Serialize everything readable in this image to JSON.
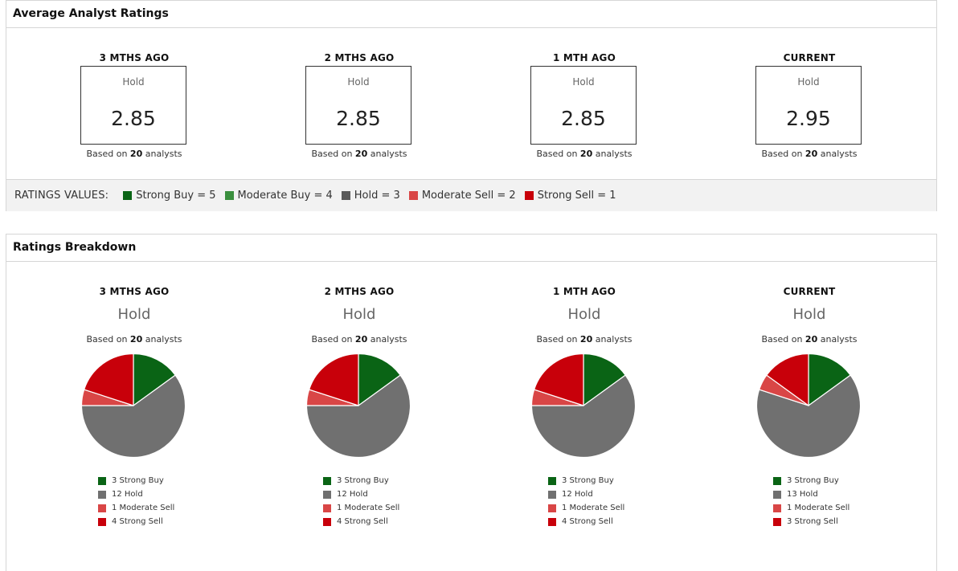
{
  "colors": {
    "strong_buy": "#0a6415",
    "moderate_buy": "#3a8f3e",
    "hold": "#707070",
    "moderate_sell": "#d94646",
    "strong_sell": "#c8000a"
  },
  "avg_panel": {
    "title": "Average Analyst Ratings",
    "columns": [
      {
        "period": "3 MTHS AGO",
        "label": "Hold",
        "score": "2.85",
        "based_prefix": "Based on",
        "analysts": "20",
        "based_suffix": "analysts"
      },
      {
        "period": "2 MTHS AGO",
        "label": "Hold",
        "score": "2.85",
        "based_prefix": "Based on",
        "analysts": "20",
        "based_suffix": "analysts"
      },
      {
        "period": "1 MTH AGO",
        "label": "Hold",
        "score": "2.85",
        "based_prefix": "Based on",
        "analysts": "20",
        "based_suffix": "analysts"
      },
      {
        "period": "CURRENT",
        "label": "Hold",
        "score": "2.95",
        "based_prefix": "Based on",
        "analysts": "20",
        "based_suffix": "analysts"
      }
    ],
    "values_title": "RATINGS VALUES:",
    "values": [
      {
        "label": "Strong Buy = 5",
        "color": "#0a6415"
      },
      {
        "label": "Moderate Buy = 4",
        "color": "#3a8f3e"
      },
      {
        "label": "Hold = 3",
        "color": "#5a5a5a"
      },
      {
        "label": "Moderate Sell = 2",
        "color": "#d94646"
      },
      {
        "label": "Strong Sell = 1",
        "color": "#c8000a"
      }
    ]
  },
  "breakdown_panel": {
    "title": "Ratings Breakdown",
    "columns": [
      {
        "period": "3 MTHS AGO",
        "label": "Hold",
        "based_prefix": "Based on",
        "analysts": "20",
        "based_suffix": "analysts"
      },
      {
        "period": "2 MTHS AGO",
        "label": "Hold",
        "based_prefix": "Based on",
        "analysts": "20",
        "based_suffix": "analysts"
      },
      {
        "period": "1 MTH AGO",
        "label": "Hold",
        "based_prefix": "Based on",
        "analysts": "20",
        "based_suffix": "analysts"
      },
      {
        "period": "CURRENT",
        "label": "Hold",
        "based_prefix": "Based on",
        "analysts": "20",
        "based_suffix": "analysts"
      }
    ]
  },
  "chart_data": [
    {
      "type": "pie",
      "title": "3 MTHS AGO",
      "labels": [
        "Strong Buy",
        "Hold",
        "Moderate Sell",
        "Strong Sell"
      ],
      "values": [
        3,
        12,
        1,
        4
      ],
      "legend": [
        "3 Strong Buy",
        "12 Hold",
        "1 Moderate Sell",
        "4 Strong Sell"
      ],
      "colors": [
        "#0a6415",
        "#707070",
        "#d94646",
        "#c8000a"
      ]
    },
    {
      "type": "pie",
      "title": "2 MTHS AGO",
      "labels": [
        "Strong Buy",
        "Hold",
        "Moderate Sell",
        "Strong Sell"
      ],
      "values": [
        3,
        12,
        1,
        4
      ],
      "legend": [
        "3 Strong Buy",
        "12 Hold",
        "1 Moderate Sell",
        "4 Strong Sell"
      ],
      "colors": [
        "#0a6415",
        "#707070",
        "#d94646",
        "#c8000a"
      ]
    },
    {
      "type": "pie",
      "title": "1 MTH AGO",
      "labels": [
        "Strong Buy",
        "Hold",
        "Moderate Sell",
        "Strong Sell"
      ],
      "values": [
        3,
        12,
        1,
        4
      ],
      "legend": [
        "3 Strong Buy",
        "12 Hold",
        "1 Moderate Sell",
        "4 Strong Sell"
      ],
      "colors": [
        "#0a6415",
        "#707070",
        "#d94646",
        "#c8000a"
      ]
    },
    {
      "type": "pie",
      "title": "CURRENT",
      "labels": [
        "Strong Buy",
        "Hold",
        "Moderate Sell",
        "Strong Sell"
      ],
      "values": [
        3,
        13,
        1,
        3
      ],
      "legend": [
        "3 Strong Buy",
        "13 Hold",
        "1 Moderate Sell",
        "3 Strong Sell"
      ],
      "colors": [
        "#0a6415",
        "#707070",
        "#d94646",
        "#c8000a"
      ]
    }
  ]
}
